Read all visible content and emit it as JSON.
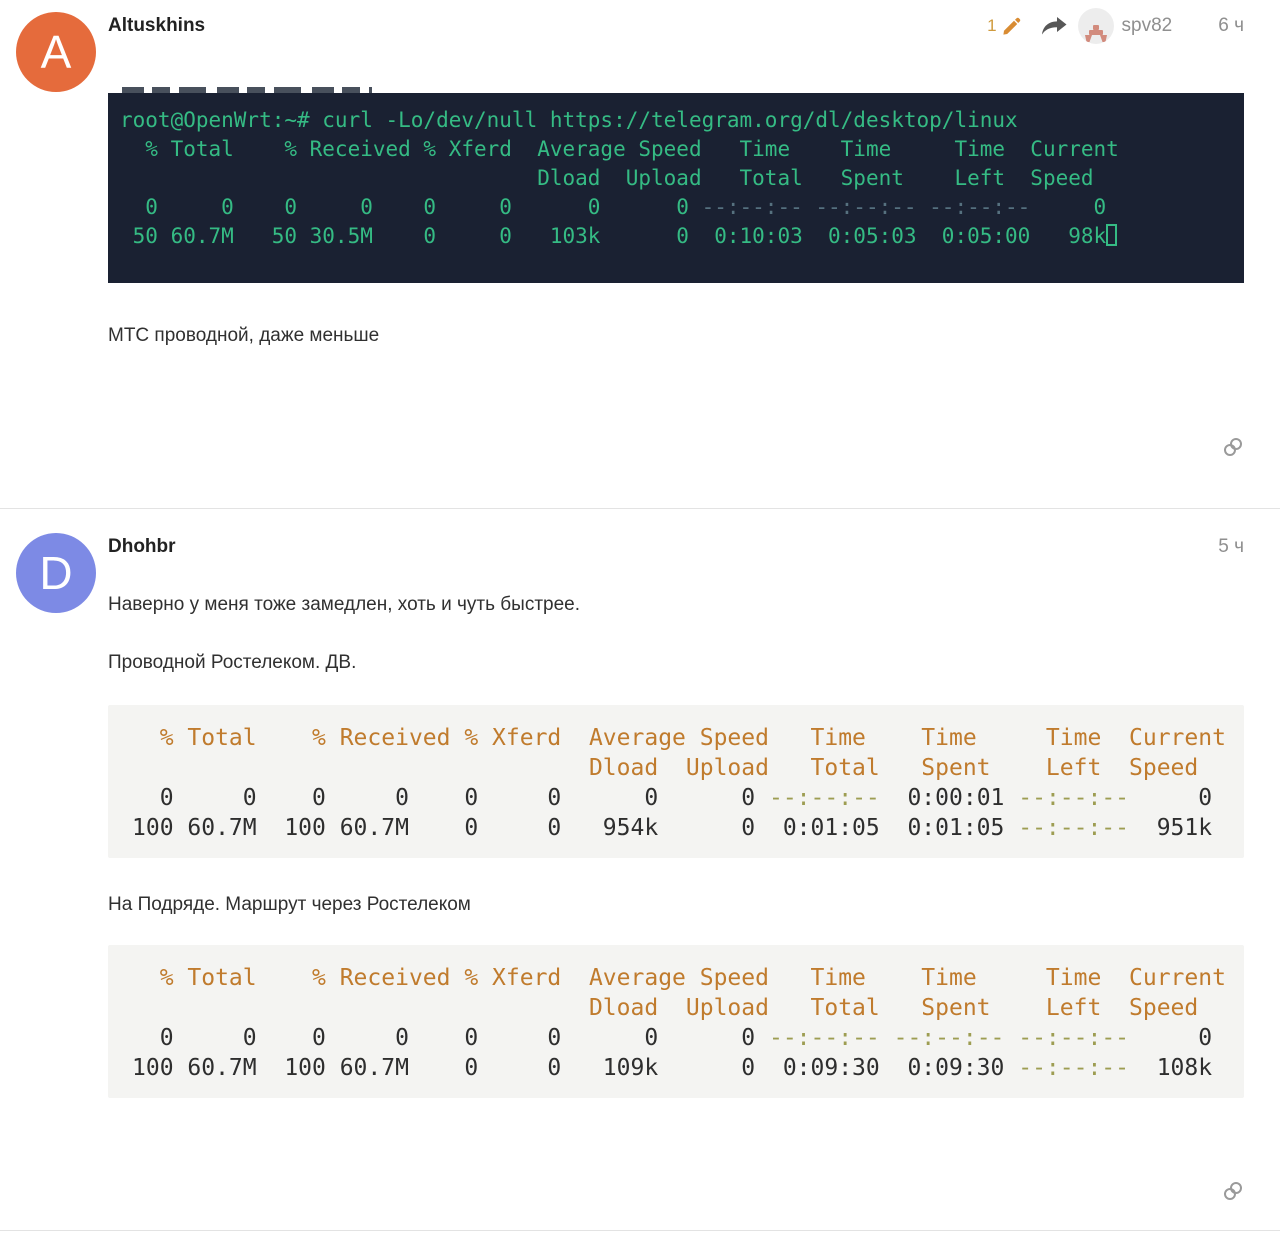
{
  "theme": {
    "term-bg": "#1a2132",
    "term-green": "#35bb84",
    "term-dim": "#56717f",
    "code-bg": "#f4f4f2",
    "code-orange": "#c07b2d",
    "code-dark": "#2e2e2e",
    "code-olive": "#9d9d52",
    "avatar1": "#e56b3c",
    "avatar2": "#7d8ae5",
    "edit-orange": "#cf9a3d",
    "meta-gray": "#8f8f8f",
    "icon-gray": "#9a9a9a",
    "divider": "#e3e3e3",
    "text": "#303030"
  },
  "posts": [
    {
      "author": "Altuskhins",
      "avatar_letter": "A",
      "edit_count": "1",
      "reply_user": "spv82",
      "time": "6 ч",
      "body": "МТС проводной, даже меньше",
      "terminal": {
        "lines": [
          [
            {
              "t": "root@OpenWrt:~# curl -Lo/dev/null https://telegram.org/dl/desktop/linux",
              "c": "fg"
            }
          ],
          [
            {
              "t": "  % Total    % Received % Xferd  Average Speed   Time    Time     Time  Current",
              "c": "fg"
            }
          ],
          [
            {
              "t": "                                 Dload  Upload   Total   Spent    Left  Speed",
              "c": "fg"
            }
          ],
          [
            {
              "t": "  0     0    0     0    0     0      0      0 ",
              "c": "fg"
            },
            {
              "t": "--:--:-- --:--:-- --:--:--",
              "c": "dim"
            },
            {
              "t": "     0",
              "c": "fg"
            }
          ],
          [
            {
              "t": " 50 60.7M   50 30.5M    0     0   103k      0  0:10:03  0:05:03  0:05:00   98k",
              "c": "fg"
            },
            {
              "t": "",
              "c": "cursor"
            }
          ]
        ]
      }
    },
    {
      "author": "Dhohbr",
      "avatar_letter": "D",
      "time": "5 ч",
      "paragraph1": "Наверно у меня тоже замедлен, хоть и чуть быстрее.",
      "paragraph2": "Проводной Ростелеком. ДВ.",
      "paragraph3": "На Подряде. Маршрут через Ростелеком",
      "code1": {
        "lines": [
          [
            {
              "t": "  % Total    % Received % Xferd  Average Speed   Time    Time     Time  Current",
              "c": "hdr"
            }
          ],
          [
            {
              "t": "                                 Dload  Upload   Total   Spent    Left  Speed",
              "c": "hdr"
            }
          ],
          [
            {
              "t": "  0     0    0     0    0     0      0      0 ",
              "c": "num"
            },
            {
              "t": "--:--:--",
              "c": "dash"
            },
            {
              "t": "  0:00:01 ",
              "c": "num"
            },
            {
              "t": "--:--:--",
              "c": "dash"
            },
            {
              "t": "     0",
              "c": "num"
            }
          ],
          [
            {
              "t": "100 60.7M  100 60.7M    0     0   954k      0  0:01:05  0:01:05 ",
              "c": "num"
            },
            {
              "t": "--:--:--",
              "c": "dash"
            },
            {
              "t": "  951k",
              "c": "num"
            }
          ]
        ]
      },
      "code2": {
        "lines": [
          [
            {
              "t": "  % Total    % Received % Xferd  Average Speed   Time    Time     Time  Current",
              "c": "hdr"
            }
          ],
          [
            {
              "t": "                                 Dload  Upload   Total   Spent    Left  Speed",
              "c": "hdr"
            }
          ],
          [
            {
              "t": "  0     0    0     0    0     0      0      0 ",
              "c": "num"
            },
            {
              "t": "--:--:-- --:--:-- --:--:--",
              "c": "dash"
            },
            {
              "t": "     0",
              "c": "num"
            }
          ],
          [
            {
              "t": "100 60.7M  100 60.7M    0     0   109k      0  0:09:30  0:09:30 ",
              "c": "num"
            },
            {
              "t": "--:--:--",
              "c": "dash"
            },
            {
              "t": "  108k",
              "c": "num"
            }
          ]
        ]
      }
    }
  ]
}
